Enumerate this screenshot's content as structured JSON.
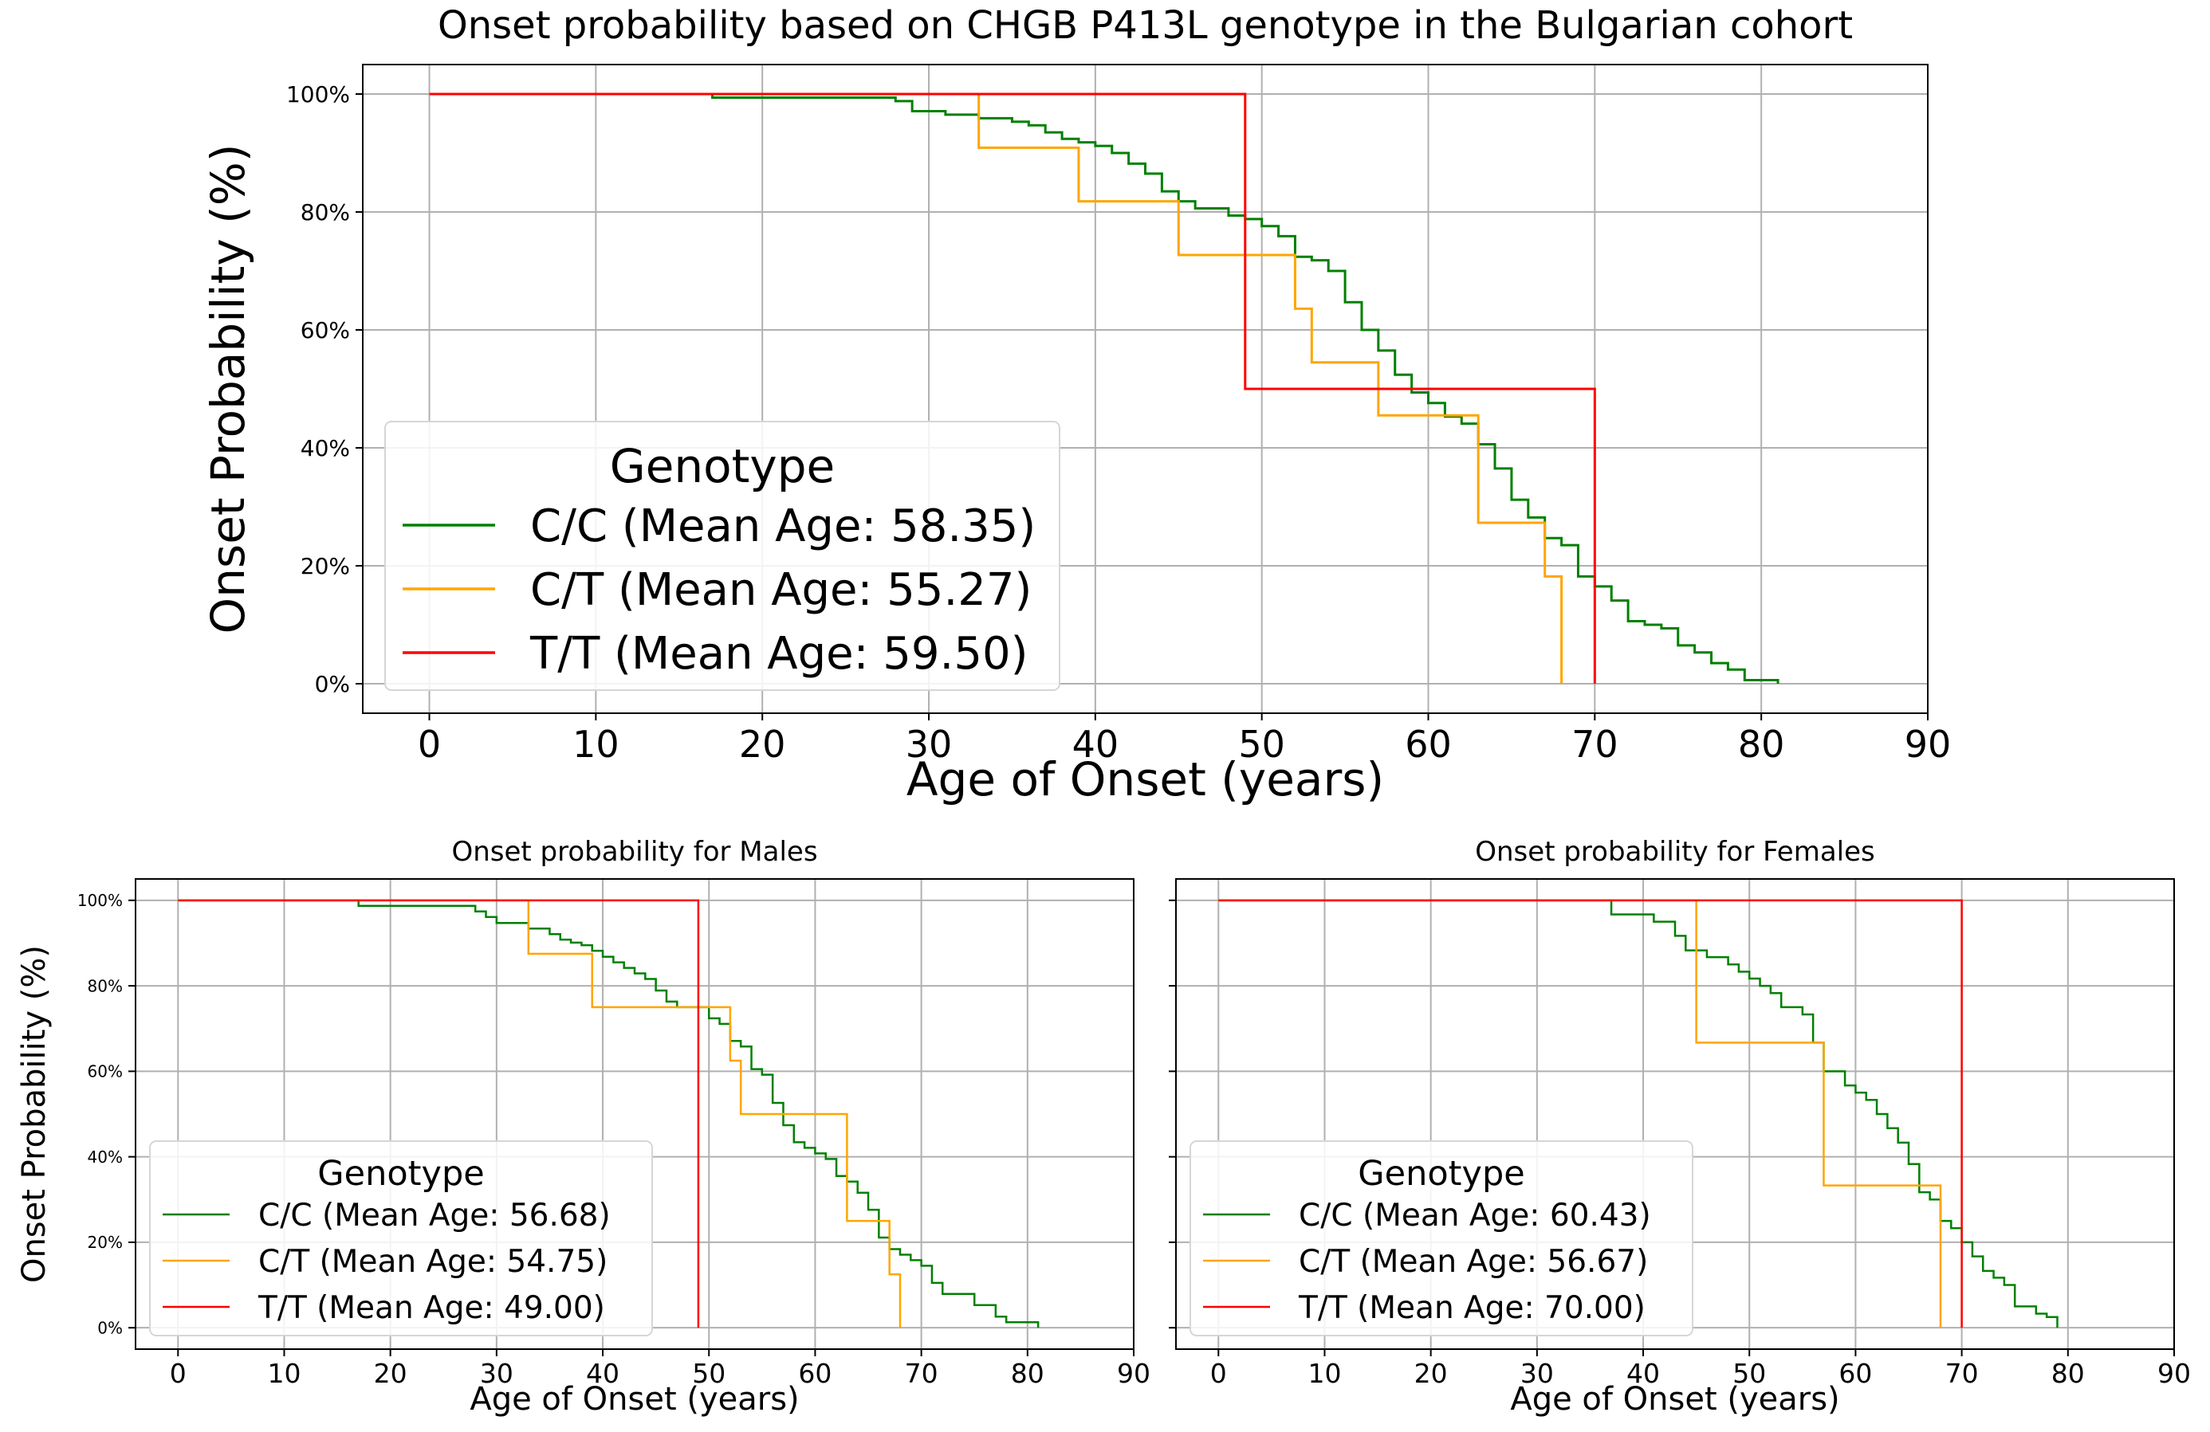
{
  "chart_data": [
    {
      "type": "line",
      "step": true,
      "title": "Onset probability based on CHGB P413L genotype in the Bulgarian cohort",
      "xlabel": "Age of Onset (years)",
      "ylabel": "Onset Probability (%)",
      "xlim": [
        -4,
        90
      ],
      "ylim": [
        -5,
        105
      ],
      "xticks": [
        0,
        10,
        20,
        30,
        40,
        50,
        60,
        70,
        80,
        90
      ],
      "xtick_labels": [
        "0",
        "10",
        "20",
        "30",
        "40",
        "50",
        "60",
        "70",
        "80",
        "90"
      ],
      "yticks": [
        0,
        20,
        40,
        60,
        80,
        100
      ],
      "ytick_labels": [
        "0%",
        "20%",
        "40%",
        "60%",
        "80%",
        "100%"
      ],
      "grid": true,
      "legend_title": "Genotype",
      "legend_position": "lower-left",
      "series": [
        {
          "name": "C/C (Mean Age: 58.35)",
          "color": "#008000",
          "x": [
            0,
            17,
            28,
            29,
            31,
            33,
            35,
            36,
            37,
            38,
            39,
            40,
            41,
            42,
            43,
            44,
            45,
            46,
            48,
            49,
            50,
            51,
            52,
            53,
            54,
            55,
            56,
            57,
            58,
            59,
            60,
            61,
            62,
            63,
            64,
            65,
            66,
            67,
            68,
            69,
            70,
            71,
            72,
            73,
            74,
            75,
            76,
            77,
            78,
            79,
            81
          ],
          "y": [
            100,
            99.4,
            98.8,
            97.1,
            96.5,
            95.9,
            95.3,
            94.7,
            93.5,
            92.4,
            91.8,
            91.2,
            90.0,
            88.2,
            86.5,
            83.5,
            81.8,
            80.6,
            79.4,
            78.8,
            77.6,
            75.9,
            72.4,
            71.8,
            70.0,
            64.7,
            60.0,
            56.5,
            52.4,
            49.4,
            47.6,
            45.3,
            44.1,
            40.6,
            36.5,
            31.2,
            28.2,
            24.7,
            23.5,
            18.2,
            16.5,
            14.1,
            10.6,
            10.0,
            9.4,
            6.5,
            5.3,
            3.5,
            2.4,
            0.6,
            0
          ]
        },
        {
          "name": "C/T (Mean Age: 55.27)",
          "color": "#FFA500",
          "x": [
            0,
            33,
            39,
            45,
            52,
            53,
            57,
            63,
            67,
            68
          ],
          "y": [
            100,
            90.9,
            81.8,
            72.7,
            63.6,
            54.5,
            45.5,
            27.3,
            18.2,
            0
          ]
        },
        {
          "name": "T/T (Mean Age: 59.50)",
          "color": "#FF0000",
          "x": [
            0,
            49,
            70
          ],
          "y": [
            100,
            50,
            0
          ]
        }
      ]
    },
    {
      "type": "line",
      "step": true,
      "title": "Onset probability for Males",
      "xlabel": "Age of Onset (years)",
      "ylabel": "Onset Probability (%)",
      "xlim": [
        -4,
        90
      ],
      "ylim": [
        -5,
        105
      ],
      "xticks": [
        0,
        10,
        20,
        30,
        40,
        50,
        60,
        70,
        80,
        90
      ],
      "xtick_labels": [
        "0",
        "10",
        "20",
        "30",
        "40",
        "50",
        "60",
        "70",
        "80",
        "90"
      ],
      "yticks": [
        0,
        20,
        40,
        60,
        80,
        100
      ],
      "ytick_labels": [
        "0%",
        "20%",
        "40%",
        "60%",
        "80%",
        "100%"
      ],
      "grid": true,
      "legend_title": "Genotype",
      "legend_position": "lower-left",
      "series": [
        {
          "name": "C/C (Mean Age: 56.68)",
          "color": "#008000",
          "x": [
            0,
            17,
            28,
            29,
            30,
            33,
            35,
            36,
            37,
            38,
            39,
            40,
            41,
            42,
            43,
            44,
            45,
            46,
            47,
            50,
            51,
            52,
            53,
            54,
            55,
            56,
            57,
            58,
            59,
            60,
            61,
            62,
            63,
            64,
            65,
            66,
            67,
            68,
            69,
            70,
            71,
            72,
            75,
            77,
            78,
            81
          ],
          "y": [
            100,
            98.7,
            97.4,
            96.1,
            94.7,
            93.4,
            92.1,
            90.8,
            90.1,
            89.5,
            88.2,
            86.8,
            85.5,
            84.2,
            82.9,
            81.6,
            78.9,
            76.3,
            75.0,
            72.4,
            71.1,
            67.1,
            65.8,
            60.5,
            59.2,
            52.6,
            47.4,
            43.4,
            42.1,
            40.8,
            39.5,
            35.5,
            34.2,
            31.6,
            27.6,
            21.1,
            18.4,
            17.1,
            15.8,
            14.5,
            10.5,
            7.9,
            5.3,
            2.6,
            1.3,
            0
          ]
        },
        {
          "name": "C/T (Mean Age: 54.75)",
          "color": "#FFA500",
          "x": [
            0,
            33,
            39,
            52,
            53,
            63,
            67,
            68
          ],
          "y": [
            100,
            87.5,
            75.0,
            62.5,
            50.0,
            25.0,
            12.5,
            0
          ]
        },
        {
          "name": "T/T (Mean Age: 49.00)",
          "color": "#FF0000",
          "x": [
            0,
            49
          ],
          "y": [
            100,
            0
          ]
        }
      ]
    },
    {
      "type": "line",
      "step": true,
      "title": "Onset probability for Females",
      "xlabel": "Age of Onset (years)",
      "ylabel": "",
      "xlim": [
        -4,
        90
      ],
      "ylim": [
        -5,
        105
      ],
      "xticks": [
        0,
        10,
        20,
        30,
        40,
        50,
        60,
        70,
        80,
        90
      ],
      "xtick_labels": [
        "0",
        "10",
        "20",
        "30",
        "40",
        "50",
        "60",
        "70",
        "80",
        "90"
      ],
      "yticks": [
        0,
        20,
        40,
        60,
        80,
        100
      ],
      "ytick_labels": [],
      "grid": true,
      "legend_title": "Genotype",
      "legend_position": "lower-left",
      "series": [
        {
          "name": "C/C (Mean Age: 60.43)",
          "color": "#008000",
          "x": [
            0,
            37,
            41,
            43,
            44,
            46,
            48,
            49,
            50,
            51,
            52,
            53,
            55,
            56,
            57,
            59,
            60,
            61,
            62,
            63,
            64,
            65,
            66,
            67,
            68,
            69,
            70,
            71,
            72,
            73,
            74,
            75,
            77,
            78,
            79
          ],
          "y": [
            100,
            96.7,
            95.0,
            91.7,
            88.3,
            86.7,
            85.0,
            83.3,
            81.7,
            80.0,
            78.3,
            75.0,
            73.3,
            66.7,
            60.0,
            56.7,
            55.0,
            53.3,
            50.0,
            46.7,
            43.3,
            38.3,
            31.7,
            30.0,
            25.0,
            23.3,
            20.0,
            16.7,
            13.3,
            11.7,
            10.0,
            5.0,
            3.3,
            2.5,
            0
          ]
        },
        {
          "name": "C/T (Mean Age: 56.67)",
          "color": "#FFA500",
          "x": [
            0,
            45,
            57,
            68
          ],
          "y": [
            100,
            66.7,
            33.3,
            0
          ]
        },
        {
          "name": "T/T (Mean Age: 70.00)",
          "color": "#FF0000",
          "x": [
            0,
            70
          ],
          "y": [
            100,
            0
          ]
        }
      ]
    }
  ]
}
